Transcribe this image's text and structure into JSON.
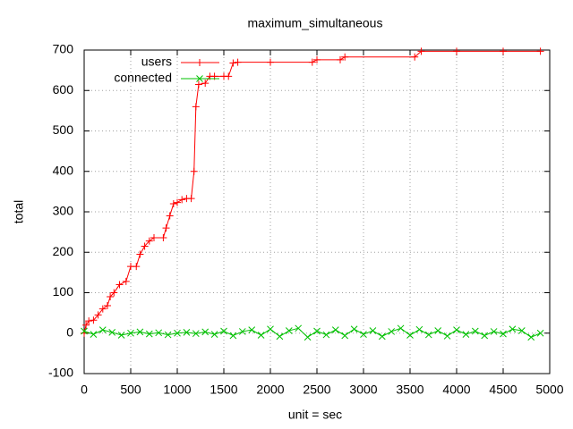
{
  "chart_data": {
    "type": "line",
    "title": "maximum_simultaneous",
    "x_label": "unit = sec",
    "y_label": "total",
    "xlim": [
      0,
      5000
    ],
    "xticks": [
      0,
      500,
      1000,
      1500,
      2000,
      2500,
      3000,
      3500,
      4000,
      4500,
      5000
    ],
    "ylim": [
      -100,
      700
    ],
    "yticks": [
      -100,
      0,
      100,
      200,
      300,
      400,
      500,
      600,
      700
    ],
    "grid": true,
    "legend": "top-left",
    "series": [
      {
        "name": "users",
        "color": "#ff0000",
        "marker": "plus",
        "x": [
          0,
          20,
          50,
          100,
          150,
          200,
          250,
          280,
          320,
          380,
          450,
          500,
          560,
          600,
          650,
          700,
          750,
          850,
          880,
          920,
          960,
          1000,
          1050,
          1100,
          1150,
          1180,
          1200,
          1230,
          1300,
          1350,
          1400,
          1500,
          1550,
          1600,
          1650,
          2000,
          2450,
          2500,
          2750,
          2800,
          3550,
          3620,
          4000,
          4500,
          4900
        ],
        "values": [
          0,
          20,
          30,
          32,
          45,
          60,
          68,
          90,
          100,
          120,
          128,
          165,
          165,
          195,
          215,
          228,
          236,
          236,
          260,
          290,
          320,
          323,
          330,
          333,
          333,
          400,
          560,
          615,
          618,
          635,
          635,
          635,
          635,
          668,
          670,
          670,
          670,
          676,
          676,
          683,
          683,
          697,
          697,
          697,
          697
        ]
      },
      {
        "name": "connected",
        "color": "#00c000",
        "marker": "cross",
        "x": [
          0,
          100,
          200,
          300,
          400,
          500,
          600,
          700,
          800,
          900,
          1000,
          1100,
          1200,
          1300,
          1400,
          1500,
          1600,
          1700,
          1800,
          1900,
          2000,
          2100,
          2200,
          2300,
          2400,
          2500,
          2600,
          2700,
          2800,
          2900,
          3000,
          3100,
          3200,
          3300,
          3400,
          3500,
          3600,
          3700,
          3800,
          3900,
          4000,
          4100,
          4200,
          4300,
          4400,
          4500,
          4600,
          4700,
          4800,
          4900
        ],
        "values": [
          5,
          -3,
          8,
          2,
          -5,
          0,
          3,
          -2,
          1,
          -4,
          0,
          2,
          -1,
          3,
          -3,
          5,
          -6,
          4,
          8,
          -5,
          10,
          -8,
          6,
          12,
          -10,
          5,
          -4,
          8,
          -6,
          10,
          -3,
          6,
          -8,
          4,
          12,
          -5,
          9,
          -4,
          6,
          -7,
          8,
          -3,
          5,
          -6,
          4,
          -2,
          10,
          6,
          -10,
          0
        ]
      }
    ]
  }
}
